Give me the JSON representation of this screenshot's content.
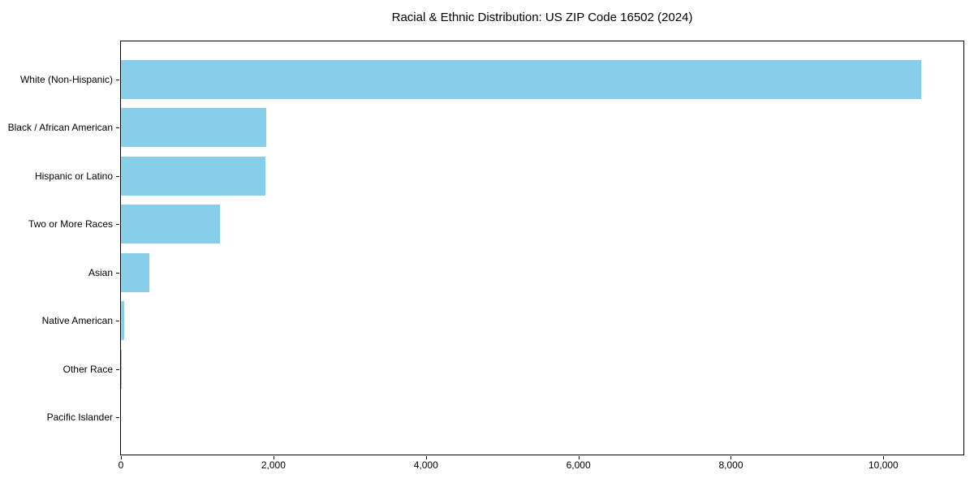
{
  "chart_data": {
    "type": "bar",
    "orientation": "horizontal",
    "title": "Racial & Ethnic Distribution: US ZIP Code 16502 (2024)",
    "categories": [
      "White (Non-Hispanic)",
      "Black / African American",
      "Hispanic or Latino",
      "Two or More Races",
      "Asian",
      "Native American",
      "Other Race",
      "Pacific Islander"
    ],
    "values": [
      10500,
      1910,
      1890,
      1295,
      370,
      40,
      10,
      0
    ],
    "xlabel": "",
    "ylabel": "",
    "xlim": [
      0,
      11050
    ],
    "x_ticks": [
      0,
      2000,
      4000,
      6000,
      8000,
      10000
    ],
    "x_tick_labels": [
      "0",
      "2,000",
      "4,000",
      "6,000",
      "8,000",
      "10,000"
    ],
    "bar_color": "#87CEEB",
    "axis_color": "#000000",
    "text_color": "#000000",
    "background_color": "#ffffff",
    "grid": false,
    "legend": false
  }
}
